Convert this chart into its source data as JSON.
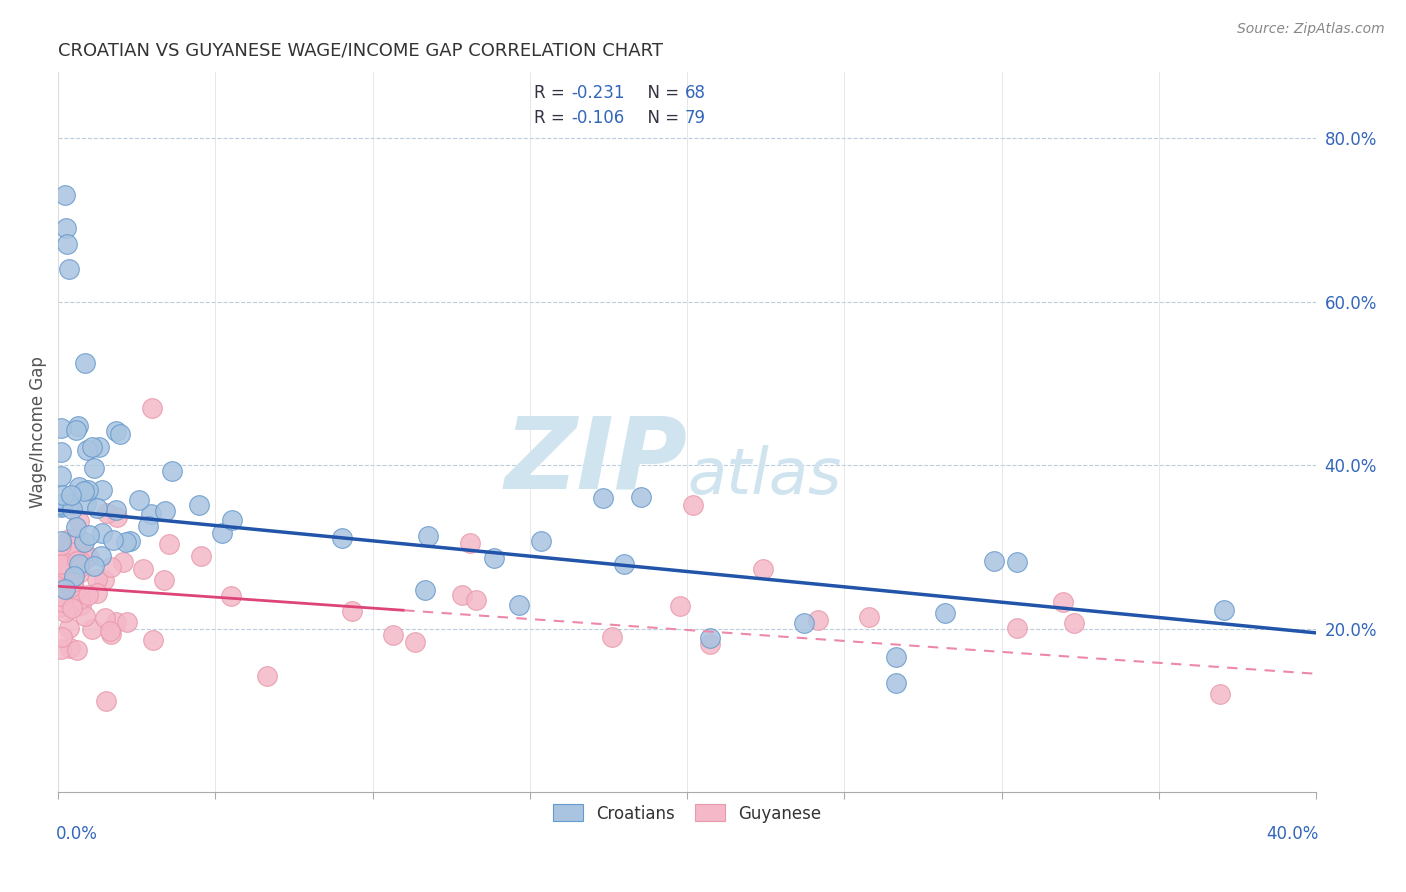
{
  "title": "CROATIAN VS GUYANESE WAGE/INCOME GAP CORRELATION CHART",
  "source": "Source: ZipAtlas.com",
  "ylabel": "Wage/Income Gap",
  "y_ticks_right": [
    0.2,
    0.4,
    0.6,
    0.8
  ],
  "y_tick_labels_right": [
    "20.0%",
    "40.0%",
    "60.0%",
    "80.0%"
  ],
  "croatians_R": -0.231,
  "croatians_N": 68,
  "guyanese_R": -0.106,
  "guyanese_N": 79,
  "blue_fill": "#A8C4E0",
  "blue_edge": "#6699CC",
  "pink_fill": "#F4B8C8",
  "pink_edge": "#E899AA",
  "blue_line_color": "#2255AA",
  "pink_line_solid_color": "#DD4477",
  "pink_line_dash_color": "#EE88AA",
  "watermark_zip": "ZIP",
  "watermark_atlas": "atlas",
  "watermark_color": "#D0E4F0",
  "legend_text_color": "#333344",
  "legend_value_color": "#3366BB",
  "source_color": "#888888",
  "grid_color": "#BBCCDD",
  "x_label_color": "#3366BB",
  "xlim": [
    0.0,
    0.4
  ],
  "ylim": [
    0.0,
    0.88
  ]
}
